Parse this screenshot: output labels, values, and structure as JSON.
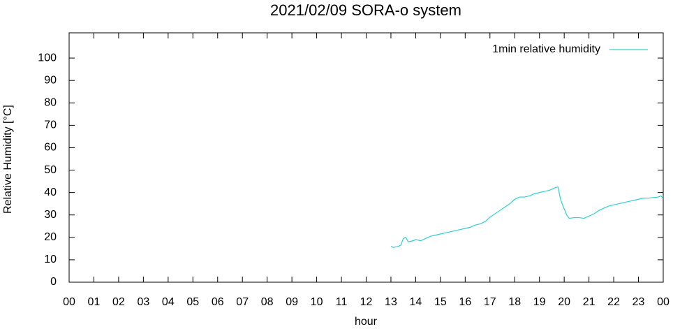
{
  "chart_data": {
    "type": "line",
    "title": "2021/02/09 SORA-o system",
    "xlabel": "hour",
    "ylabel": "Relative Humidity [°C]",
    "xlim": [
      0,
      24
    ],
    "ylim": [
      0,
      110
    ],
    "xticks": [
      {
        "value": 0,
        "label": "00"
      },
      {
        "value": 1,
        "label": "01"
      },
      {
        "value": 2,
        "label": "02"
      },
      {
        "value": 3,
        "label": "03"
      },
      {
        "value": 4,
        "label": "04"
      },
      {
        "value": 5,
        "label": "05"
      },
      {
        "value": 6,
        "label": "06"
      },
      {
        "value": 7,
        "label": "07"
      },
      {
        "value": 8,
        "label": "08"
      },
      {
        "value": 9,
        "label": "09"
      },
      {
        "value": 10,
        "label": "10"
      },
      {
        "value": 11,
        "label": "11"
      },
      {
        "value": 12,
        "label": "12"
      },
      {
        "value": 13,
        "label": "13"
      },
      {
        "value": 14,
        "label": "14"
      },
      {
        "value": 15,
        "label": "15"
      },
      {
        "value": 16,
        "label": "16"
      },
      {
        "value": 17,
        "label": "17"
      },
      {
        "value": 18,
        "label": "18"
      },
      {
        "value": 19,
        "label": "19"
      },
      {
        "value": 20,
        "label": "20"
      },
      {
        "value": 21,
        "label": "21"
      },
      {
        "value": 22,
        "label": "22"
      },
      {
        "value": 23,
        "label": "23"
      },
      {
        "value": 24,
        "label": "00"
      }
    ],
    "yticks": [
      0,
      10,
      20,
      30,
      40,
      50,
      60,
      70,
      80,
      90,
      100
    ],
    "legend": "top-right",
    "series": [
      {
        "name": "1min relative humidity",
        "color": "#30d0d0",
        "x": [
          13.0,
          13.1,
          13.3,
          13.4,
          13.5,
          13.6,
          13.7,
          13.9,
          14.0,
          14.2,
          14.4,
          14.6,
          14.8,
          15.0,
          15.2,
          15.4,
          15.6,
          15.8,
          16.0,
          16.2,
          16.4,
          16.6,
          16.8,
          17.0,
          17.2,
          17.4,
          17.6,
          17.8,
          18.0,
          18.2,
          18.4,
          18.6,
          18.8,
          19.0,
          19.2,
          19.4,
          19.6,
          19.75,
          19.85,
          19.95,
          20.1,
          20.2,
          20.4,
          20.6,
          20.8,
          21.0,
          21.2,
          21.4,
          21.6,
          21.8,
          22.0,
          22.2,
          22.4,
          22.6,
          22.8,
          23.0,
          23.2,
          23.4,
          23.6,
          23.8,
          23.9,
          24.0
        ],
        "values": [
          16,
          15.5,
          16,
          16.5,
          19.5,
          20,
          18,
          18.5,
          19,
          18.5,
          19.5,
          20.5,
          21,
          21.5,
          22,
          22.5,
          23,
          23.5,
          24,
          24.5,
          25.5,
          26,
          27,
          29,
          30.5,
          32,
          33.5,
          35,
          37,
          38,
          38,
          38.5,
          39.5,
          40,
          40.5,
          41,
          42,
          42.5,
          37,
          34,
          30,
          28.5,
          28.8,
          28.8,
          28.5,
          29.5,
          30.5,
          32,
          33,
          34,
          34.5,
          35,
          35.5,
          36,
          36.5,
          37,
          37.5,
          37.5,
          37.8,
          38,
          38.5,
          37.5
        ]
      }
    ]
  }
}
